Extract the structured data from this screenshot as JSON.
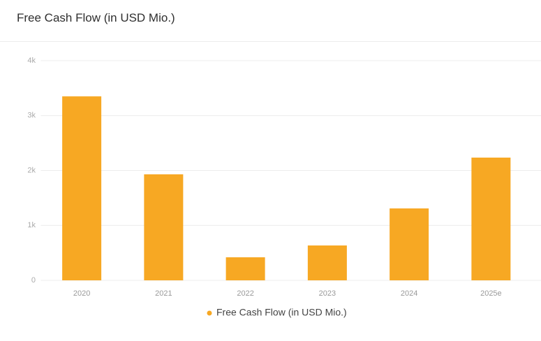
{
  "chart_data": {
    "type": "bar",
    "title": "Free Cash Flow (in USD Mio.)",
    "categories": [
      "2020",
      "2021",
      "2022",
      "2023",
      "2024",
      "2025e"
    ],
    "series": [
      {
        "name": "Free Cash Flow (in USD Mio.)",
        "color": "#f7a823",
        "values": [
          3350,
          1930,
          420,
          635,
          1310,
          2235
        ]
      }
    ],
    "ylim": [
      0,
      4000
    ],
    "yticks": [
      0,
      {
        "value": 1000,
        "label": "1k"
      },
      {
        "value": 2000,
        "label": "2k"
      },
      {
        "value": 3000,
        "label": "3k"
      },
      {
        "value": 4000,
        "label": "4k"
      }
    ],
    "grid": true
  }
}
